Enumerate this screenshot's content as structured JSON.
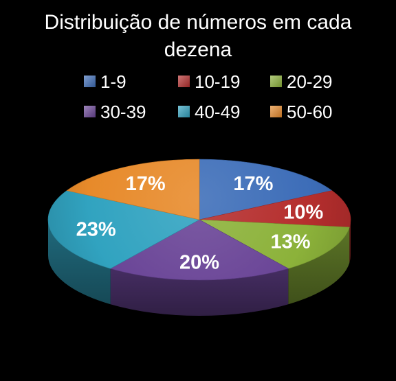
{
  "chart_data": {
    "type": "pie",
    "title": "Distribuição de números em cada dezena",
    "title_lines": [
      "Distribuição de números em cada",
      "dezena"
    ],
    "three_d": true,
    "legend_position": "top",
    "categories": [
      "1-9",
      "10-19",
      "20-29",
      "30-39",
      "40-49",
      "50-60"
    ],
    "values": [
      17,
      10,
      13,
      20,
      23,
      17
    ],
    "labels": [
      "17%",
      "10%",
      "13%",
      "20%",
      "23%",
      "17%"
    ],
    "colors": [
      "#3d6db8",
      "#b52e2d",
      "#8cb23a",
      "#6a4597",
      "#31a3c0",
      "#e78a2a"
    ]
  }
}
